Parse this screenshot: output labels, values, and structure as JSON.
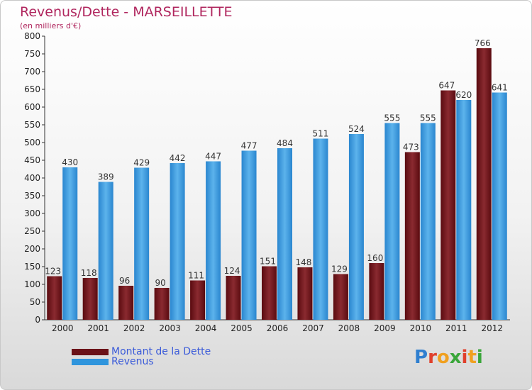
{
  "title": "Revenus/Dette - MARSEILLETTE",
  "subtitle": "(en milliers d'€)",
  "colors": {
    "debt": "#6b1218",
    "revenue": "#2f95dd",
    "title": "#b0265e",
    "legend_text": "#3b5bd9"
  },
  "legend": [
    {
      "label": "Montant de la Dette",
      "color": "#6b1218"
    },
    {
      "label": "Revenus",
      "color": "#2f95dd"
    }
  ],
  "logo": {
    "text": "Proxiti"
  },
  "chart_data": {
    "type": "bar",
    "title": "Revenus/Dette - MARSEILLETTE",
    "subtitle": "(en milliers d'€)",
    "categories": [
      "2000",
      "2001",
      "2002",
      "2003",
      "2004",
      "2005",
      "2006",
      "2007",
      "2008",
      "2009",
      "2010",
      "2011",
      "2012"
    ],
    "series": [
      {
        "name": "Montant de la Dette",
        "values": [
          123,
          118,
          96,
          90,
          111,
          124,
          151,
          148,
          129,
          160,
          473,
          647,
          766
        ]
      },
      {
        "name": "Revenus",
        "values": [
          430,
          389,
          429,
          442,
          447,
          477,
          484,
          511,
          524,
          555,
          555,
          620,
          641
        ]
      }
    ],
    "ylim": [
      0,
      800
    ],
    "yticks": [
      0,
      50,
      100,
      150,
      200,
      250,
      300,
      350,
      400,
      450,
      500,
      550,
      600,
      650,
      700,
      750,
      800
    ],
    "grid": false,
    "legend_position": "bottom-left"
  }
}
